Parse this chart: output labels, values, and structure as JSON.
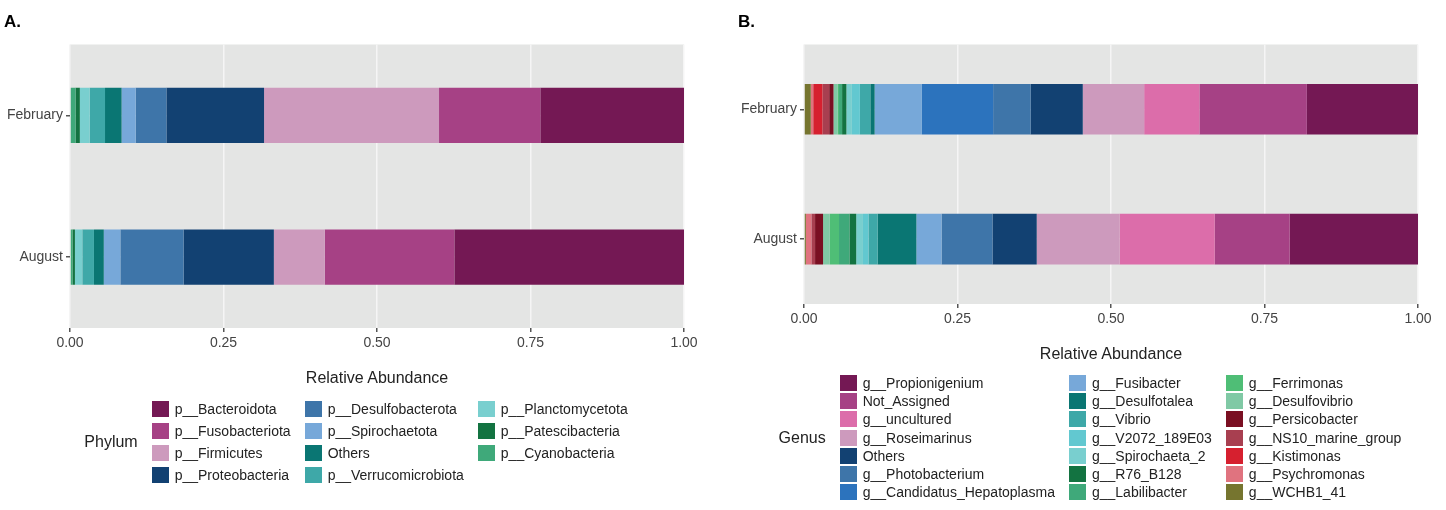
{
  "chart_data": [
    {
      "type": "bar",
      "title": "A.",
      "xlabel": "Relative Abundance",
      "orientation": "horizontal",
      "stacked": true,
      "categories": [
        "February",
        "August"
      ],
      "xlim": [
        0,
        1
      ],
      "xticks": [
        {
          "value": 0,
          "label": "0.00"
        },
        {
          "value": 0.25,
          "label": "0.25"
        },
        {
          "value": 0.5,
          "label": "0.50"
        },
        {
          "value": 0.75,
          "label": "0.75"
        },
        {
          "value": 1,
          "label": "1.00"
        }
      ],
      "grid": true,
      "legend": "bottom",
      "legend_title": "Phylum",
      "series": [
        {
          "name": "p__Cyanobacteria",
          "color": "#3fa97a",
          "values": [
            0.009,
            0.004
          ]
        },
        {
          "name": "p__Patescibacteria",
          "color": "#137341",
          "values": [
            0.007,
            0.004
          ]
        },
        {
          "name": "p__Planctomycetota",
          "color": "#79cfcf",
          "values": [
            0.016,
            0.012
          ]
        },
        {
          "name": "p__Verrucomicrobiota",
          "color": "#3ea8a8",
          "values": [
            0.025,
            0.019
          ]
        },
        {
          "name": "Others",
          "color": "#0a7673",
          "values": [
            0.027,
            0.016
          ]
        },
        {
          "name": "p__Spirochaetota",
          "color": "#77a8d9",
          "values": [
            0.023,
            0.027
          ]
        },
        {
          "name": "p__Desulfobacterota",
          "color": "#3e75a9",
          "values": [
            0.05,
            0.103
          ]
        },
        {
          "name": "p__Proteobacteria",
          "color": "#124172",
          "values": [
            0.159,
            0.147
          ]
        },
        {
          "name": "p__Firmicutes",
          "color": "#cd9abd",
          "values": [
            0.285,
            0.083
          ]
        },
        {
          "name": "p__Fusobacteriota",
          "color": "#a64185",
          "values": [
            0.165,
            0.211
          ]
        },
        {
          "name": "p__Bacteroidota",
          "color": "#741854",
          "values": [
            0.234,
            0.374
          ]
        }
      ]
    },
    {
      "type": "bar",
      "title": "B.",
      "xlabel": "Relative Abundance",
      "orientation": "horizontal",
      "stacked": true,
      "categories": [
        "February",
        "August"
      ],
      "xlim": [
        0,
        1
      ],
      "xticks": [
        {
          "value": 0,
          "label": "0.00"
        },
        {
          "value": 0.25,
          "label": "0.25"
        },
        {
          "value": 0.5,
          "label": "0.50"
        },
        {
          "value": 0.75,
          "label": "0.75"
        },
        {
          "value": 1,
          "label": "1.00"
        }
      ],
      "grid": true,
      "legend": "bottom",
      "legend_title": "Genus",
      "series": [
        {
          "name": "g__WCHB1_41",
          "color": "#76752f",
          "values": [
            0.011,
            0.003
          ]
        },
        {
          "name": "g__Psychromonas",
          "color": "#e0737f",
          "values": [
            0.004,
            0.009
          ]
        },
        {
          "name": "g__Kistimonas",
          "color": "#d6202f",
          "values": [
            0.015,
            0
          ]
        },
        {
          "name": "g__NS10_marine_group",
          "color": "#a83f50",
          "values": [
            0.011,
            0.006
          ]
        },
        {
          "name": "g__Persicobacter",
          "color": "#7a0f22",
          "values": [
            0.007,
            0.013
          ]
        },
        {
          "name": "g__Desulfovibrio",
          "color": "#80c9a5",
          "values": [
            0.007,
            0.011
          ]
        },
        {
          "name": "g__Ferrimonas",
          "color": "#4fbe76",
          "values": [
            0.002,
            0.015
          ]
        },
        {
          "name": "g__Labilibacter",
          "color": "#3fa97a",
          "values": [
            0.005,
            0.017
          ]
        },
        {
          "name": "g__R76_B128",
          "color": "#137341",
          "values": [
            0.007,
            0.011
          ]
        },
        {
          "name": "g__Spirochaeta_2",
          "color": "#79cfcf",
          "values": [
            0.009,
            0.011
          ]
        },
        {
          "name": "g__V2072_189E03",
          "color": "#62c8d0",
          "values": [
            0.013,
            0.009
          ]
        },
        {
          "name": "g__Vibrio",
          "color": "#3ea8a8",
          "values": [
            0.017,
            0.015
          ]
        },
        {
          "name": "g__Desulfotalea",
          "color": "#0a7673",
          "values": [
            0.007,
            0.063
          ]
        },
        {
          "name": "g__Fusibacter",
          "color": "#77a8d9",
          "values": [
            0.077,
            0.041
          ]
        },
        {
          "name": "g__Candidatus_Hepatoplasma",
          "color": "#2c73bd",
          "values": [
            0.116,
            0
          ]
        },
        {
          "name": "g__Photobacterium",
          "color": "#3e75a9",
          "values": [
            0.061,
            0.083
          ]
        },
        {
          "name": "Others",
          "color": "#124172",
          "values": [
            0.085,
            0.072
          ]
        },
        {
          "name": "g__Roseimarinus",
          "color": "#cd9abd",
          "values": [
            0.1,
            0.135
          ]
        },
        {
          "name": "g__uncultured",
          "color": "#dc6daa",
          "values": [
            0.09,
            0.155
          ]
        },
        {
          "name": "Not_Assigned",
          "color": "#a64185",
          "values": [
            0.175,
            0.122
          ]
        },
        {
          "name": "g__Propionigenium",
          "color": "#741854",
          "values": [
            0.181,
            0.21
          ]
        }
      ]
    }
  ]
}
